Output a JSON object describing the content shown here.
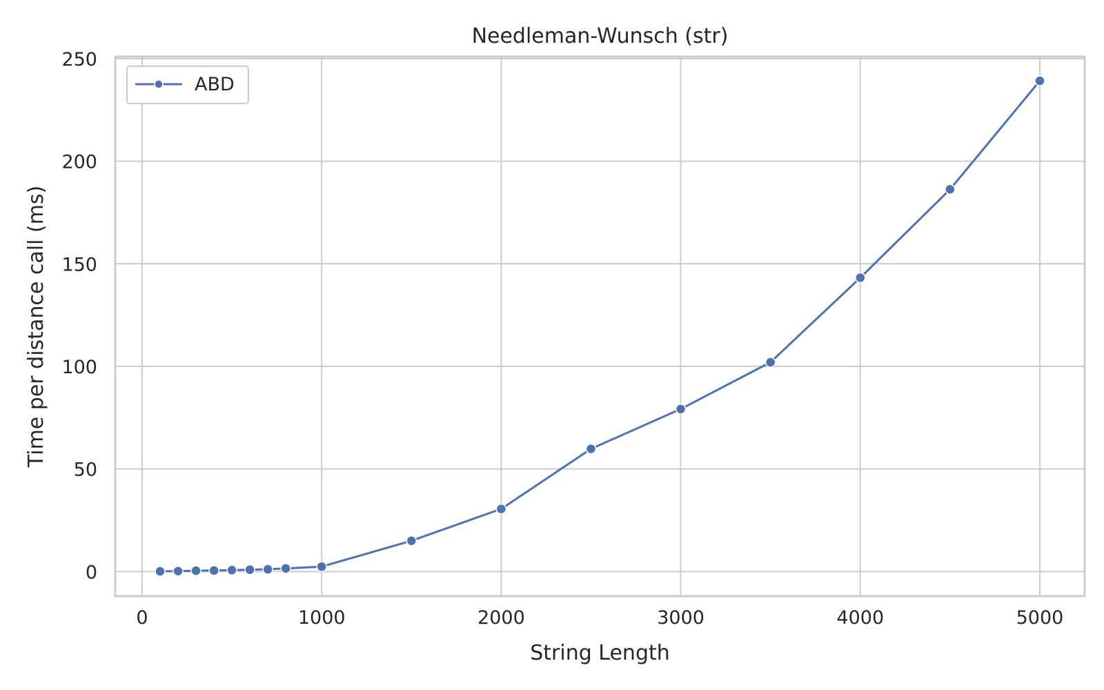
{
  "chart_data": {
    "type": "line",
    "title": "Needleman-Wunsch (str)",
    "xlabel": "String Length",
    "ylabel": "Time per distance call (ms)",
    "xlim": [
      -150,
      5250
    ],
    "ylim": [
      -12,
      251
    ],
    "xticks": [
      0,
      1000,
      2000,
      3000,
      4000,
      5000
    ],
    "yticks": [
      0,
      50,
      100,
      150,
      200,
      250
    ],
    "grid": true,
    "legend_position": "top-left",
    "series": [
      {
        "name": "ABD",
        "color": "#4c72b0",
        "marker": "circle",
        "x": [
          100,
          200,
          300,
          400,
          500,
          600,
          700,
          800,
          1000,
          1500,
          2000,
          2500,
          3000,
          3500,
          4000,
          4500,
          5000
        ],
        "y": [
          0.1,
          0.2,
          0.4,
          0.5,
          0.7,
          0.9,
          1.1,
          1.5,
          2.4,
          15.0,
          30.5,
          59.8,
          79.2,
          102.0,
          143.2,
          186.3,
          239.2
        ]
      }
    ]
  }
}
